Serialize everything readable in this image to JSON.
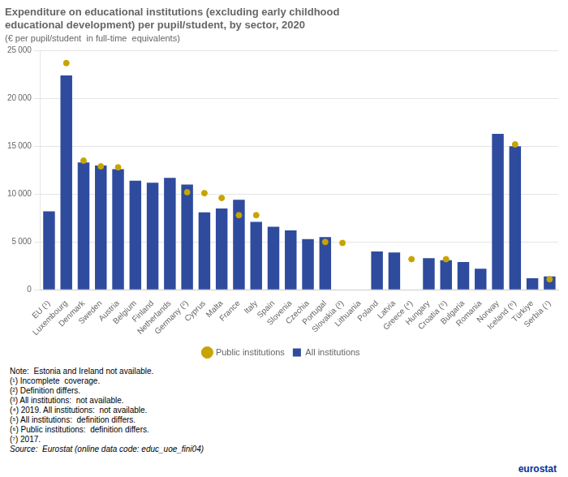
{
  "chart_data": {
    "type": "bar",
    "title": [
      "Expenditure on educational institutions (excluding early childhood",
      "educational development) per pupil/student, by sector, 2020"
    ],
    "subtitle": "(€ per pupil/student  in full-time  equivalents)",
    "categories": [
      "EU (¹)",
      "Luxembourg",
      "Denmark",
      "Sweden",
      "Austria",
      "Belgium",
      "Finland",
      "Netherlands",
      "Germany (²)",
      "Cyprus",
      "Malta",
      "France",
      "Italy",
      "Spain",
      "Slovenia",
      "Czechia",
      "Portugal",
      "Slovakia (³)",
      "Lithuania",
      "Poland",
      "Latvia",
      "Greece (⁴)",
      "Hungary",
      "Croatia (⁵)",
      "Bulgaria",
      "Romania",
      "Norway",
      "Iceland (⁶)",
      "Türkiye",
      "Serbia (⁷)"
    ],
    "series": [
      {
        "name": "All institutions",
        "type": "bar",
        "color": "#2E4B9E",
        "values": [
          8200,
          22400,
          13300,
          13000,
          12600,
          11400,
          11200,
          11700,
          11000,
          8100,
          8500,
          9400,
          7100,
          6600,
          6200,
          5300,
          5500,
          null,
          null,
          4000,
          3900,
          null,
          3300,
          3100,
          2900,
          2200,
          16300,
          15000,
          1200,
          1400
        ]
      },
      {
        "name": "Public institutions",
        "type": "scatter",
        "color": "#C8A400",
        "marker": "circle",
        "values": [
          null,
          23700,
          13500,
          12900,
          12800,
          null,
          null,
          null,
          10200,
          10100,
          9600,
          7800,
          7800,
          null,
          null,
          null,
          5000,
          4900,
          null,
          null,
          null,
          3200,
          null,
          3200,
          null,
          null,
          null,
          15200,
          null,
          1100
        ]
      }
    ],
    "ylim": [
      0,
      25000
    ],
    "yticks": [
      0,
      {
        "value": 5000,
        "label": "5 000"
      },
      {
        "value": 10000,
        "label": "10 000"
      },
      {
        "value": 15000,
        "label": "15 000"
      },
      {
        "value": 20000,
        "label": "20 000"
      },
      {
        "value": 25000,
        "label": "25 000"
      }
    ],
    "grid": true,
    "legend": "bottom",
    "annotations": [
      "Note:  Estonia and Ireland not available.",
      "(¹) Incomplete  coverage.",
      "(²) Definition differs.",
      "(³) All institutions:  not available.",
      "(⁴) 2019. All institutions:  not available.",
      "(⁵) All institutions:  definition differs.",
      "(⁶) Public institutions:  definition differs.",
      "(⁷) 2017."
    ],
    "source": "Source:  Eurostat (online data code: educ_uoe_fini04)",
    "credit": "eurostat"
  }
}
